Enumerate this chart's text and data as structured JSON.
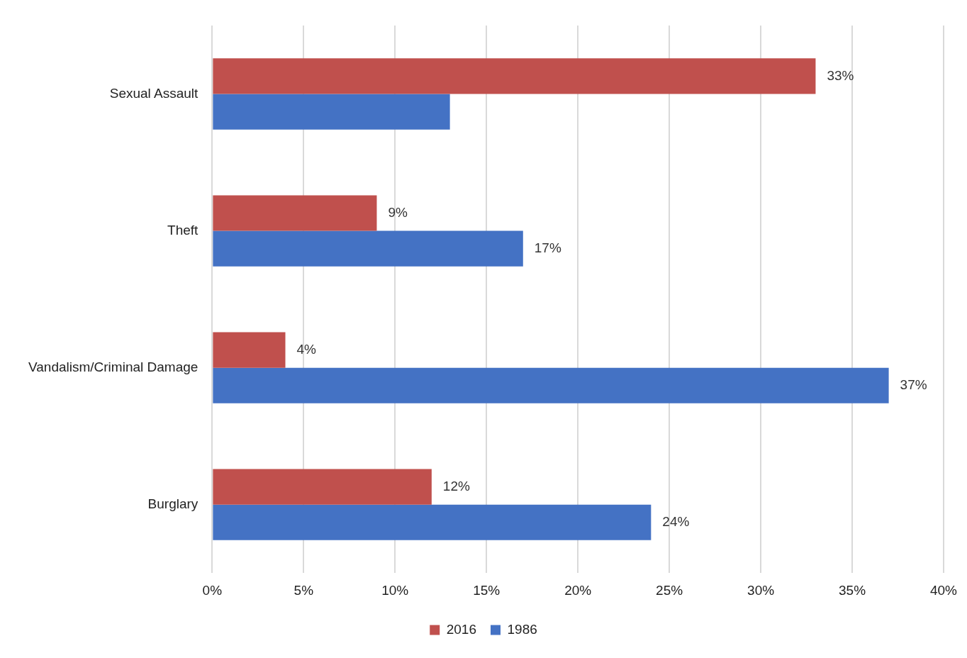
{
  "chart_data": {
    "type": "bar",
    "orientation": "horizontal",
    "categories": [
      "Sexual Assault",
      "Theft",
      "Vandalism/Criminal Damage",
      "Burglary"
    ],
    "series": [
      {
        "name": "2016",
        "color": "#c0504d",
        "values": [
          33,
          9,
          4,
          12
        ],
        "value_labels": [
          "33%",
          "9%",
          "4%",
          "12%"
        ]
      },
      {
        "name": "1986",
        "color": "#4472c4",
        "values": [
          13,
          17,
          37,
          24
        ],
        "value_labels": [
          null,
          "17%",
          "37%",
          "24%"
        ]
      }
    ],
    "xlim": [
      0,
      40
    ],
    "xticks": [
      {
        "value": 0,
        "label": "0%"
      },
      {
        "value": 5,
        "label": "5%"
      },
      {
        "value": 10,
        "label": "10%"
      },
      {
        "value": 15,
        "label": "15%"
      },
      {
        "value": 20,
        "label": "20%"
      },
      {
        "value": 25,
        "label": "25%"
      },
      {
        "value": 30,
        "label": "30%"
      },
      {
        "value": 35,
        "label": "35%"
      },
      {
        "value": 40,
        "label": "40%"
      }
    ],
    "grid": "x",
    "legend": "bottom"
  }
}
